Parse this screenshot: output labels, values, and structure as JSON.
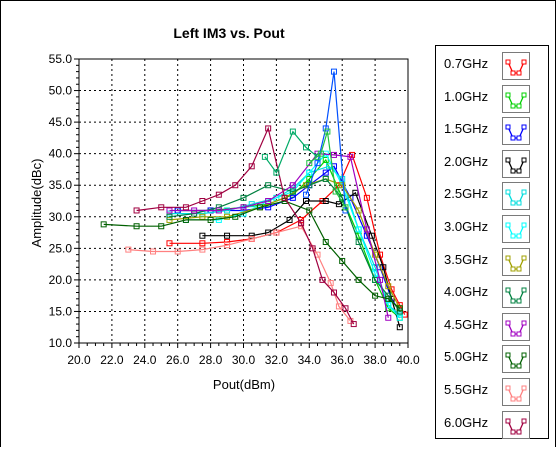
{
  "chart_data": {
    "type": "line",
    "title": "Left IM3 vs. Pout",
    "xlabel": "Pout(dBm)",
    "ylabel": "Amplitude(dBc)",
    "xlim": [
      20.0,
      40.0
    ],
    "ylim": [
      10.0,
      55.0
    ],
    "x_ticks": [
      "20.0",
      "22.0",
      "24.0",
      "26.0",
      "28.0",
      "30.0",
      "32.0",
      "34.0",
      "36.0",
      "38.0",
      "40.0"
    ],
    "y_ticks": [
      "10.0",
      "15.0",
      "20.0",
      "25.0",
      "30.0",
      "35.0",
      "40.0",
      "45.0",
      "50.0",
      "55.0"
    ],
    "grid": true,
    "legend_position": "right",
    "series": [
      {
        "name": "0.7GHz",
        "color": "#ff0000",
        "points": [
          [
            25.5,
            25.8
          ],
          [
            27.5,
            25.8
          ],
          [
            29.0,
            26.0
          ],
          [
            30.5,
            26.5
          ],
          [
            32.0,
            27.5
          ],
          [
            33.5,
            29.5
          ],
          [
            34.8,
            32.5
          ],
          [
            35.8,
            35.0
          ],
          [
            36.6,
            39.8
          ],
          [
            37.5,
            33.0
          ],
          [
            38.3,
            24.0
          ],
          [
            39.0,
            18.5
          ],
          [
            39.5,
            16.0
          ],
          [
            39.8,
            14.5
          ]
        ]
      },
      {
        "name": "1.0GHz",
        "color": "#00d000",
        "points": [
          [
            26.0,
            31.0
          ],
          [
            28.0,
            31.0
          ],
          [
            30.0,
            31.5
          ],
          [
            31.5,
            32.0
          ],
          [
            33.0,
            33.5
          ],
          [
            34.0,
            36.0
          ],
          [
            35.0,
            39.0
          ],
          [
            36.0,
            33.0
          ],
          [
            37.0,
            27.0
          ],
          [
            38.0,
            20.0
          ],
          [
            38.8,
            15.5
          ],
          [
            39.5,
            14.0
          ]
        ]
      },
      {
        "name": "1.5GHz",
        "color": "#0000ff",
        "points": [
          [
            26.0,
            31.0
          ],
          [
            28.0,
            31.0
          ],
          [
            30.0,
            31.0
          ],
          [
            31.5,
            31.5
          ],
          [
            33.0,
            33.0
          ],
          [
            34.0,
            35.0
          ],
          [
            35.0,
            37.0
          ],
          [
            35.5,
            38.0
          ],
          [
            36.5,
            33.0
          ],
          [
            37.5,
            27.0
          ],
          [
            38.3,
            22.0
          ],
          [
            39.0,
            17.0
          ],
          [
            39.5,
            15.0
          ]
        ]
      },
      {
        "name": "2.0GHz",
        "color": "#000000",
        "points": [
          [
            27.5,
            27.0
          ],
          [
            29.0,
            27.0
          ],
          [
            30.5,
            27.0
          ],
          [
            31.5,
            27.5
          ],
          [
            32.8,
            29.5
          ],
          [
            33.8,
            32.5
          ],
          [
            35.0,
            32.5
          ],
          [
            35.8,
            32.0
          ],
          [
            36.8,
            33.8
          ],
          [
            37.8,
            27.0
          ],
          [
            38.5,
            22.0
          ],
          [
            39.0,
            17.0
          ],
          [
            39.5,
            12.5
          ]
        ]
      },
      {
        "name": "2.5GHz",
        "color": "#00dddd",
        "points": [
          [
            25.5,
            30.5
          ],
          [
            27.5,
            30.5
          ],
          [
            29.0,
            31.0
          ],
          [
            30.5,
            32.0
          ],
          [
            32.0,
            33.0
          ],
          [
            33.0,
            34.5
          ],
          [
            34.0,
            37.0
          ],
          [
            35.2,
            38.0
          ],
          [
            36.0,
            36.0
          ],
          [
            37.0,
            28.0
          ],
          [
            38.0,
            22.0
          ],
          [
            38.8,
            16.0
          ],
          [
            39.5,
            14.5
          ]
        ]
      },
      {
        "name": "3.0GHz",
        "color": "#00ffff",
        "points": [
          [
            26.5,
            29.5
          ],
          [
            28.5,
            29.5
          ],
          [
            30.0,
            30.5
          ],
          [
            31.5,
            32.5
          ],
          [
            33.0,
            34.0
          ],
          [
            34.0,
            37.0
          ],
          [
            35.0,
            40.0
          ],
          [
            36.0,
            35.0
          ],
          [
            37.0,
            28.0
          ],
          [
            38.0,
            21.0
          ],
          [
            38.8,
            16.0
          ],
          [
            39.5,
            14.0
          ]
        ]
      },
      {
        "name": "3.5GHz",
        "color": "#a0a000",
        "points": [
          [
            25.5,
            29.5
          ],
          [
            27.5,
            30.0
          ],
          [
            29.0,
            30.0
          ],
          [
            31.0,
            31.5
          ],
          [
            32.5,
            33.0
          ],
          [
            33.8,
            35.0
          ],
          [
            35.0,
            36.0
          ],
          [
            36.0,
            35.0
          ],
          [
            37.0,
            31.0
          ],
          [
            38.0,
            24.0
          ],
          [
            38.8,
            19.0
          ],
          [
            39.5,
            15.5
          ]
        ]
      },
      {
        "name": "4.0GHz",
        "color": "#008040",
        "points": [
          [
            25.5,
            30.0
          ],
          [
            27.0,
            30.5
          ],
          [
            28.5,
            31.5
          ],
          [
            30.0,
            33.0
          ],
          [
            31.5,
            35.0
          ],
          [
            33.0,
            34.0
          ],
          [
            34.0,
            35.0
          ],
          [
            35.0,
            36.0
          ],
          [
            36.0,
            33.0
          ],
          [
            37.0,
            26.0
          ],
          [
            38.0,
            20.0
          ],
          [
            38.8,
            17.5
          ],
          [
            39.5,
            15.0
          ]
        ]
      },
      {
        "name": "4.5GHz",
        "color": "#a000c0",
        "points": [
          [
            25.5,
            31.0
          ],
          [
            27.0,
            31.0
          ],
          [
            28.5,
            31.0
          ],
          [
            30.0,
            31.5
          ],
          [
            31.5,
            32.5
          ],
          [
            33.0,
            35.0
          ],
          [
            34.5,
            40.0
          ],
          [
            35.5,
            39.8
          ],
          [
            36.5,
            39.5
          ],
          [
            37.5,
            28.0
          ],
          [
            38.3,
            20.0
          ],
          [
            38.8,
            14.0
          ]
        ]
      },
      {
        "name": "5.0GHz",
        "color": "#006000",
        "points": [
          [
            21.5,
            28.8
          ],
          [
            23.5,
            28.5
          ],
          [
            25.0,
            28.5
          ],
          [
            26.5,
            29.5
          ],
          [
            28.0,
            29.5
          ],
          [
            29.5,
            30.0
          ],
          [
            31.0,
            31.5
          ],
          [
            32.5,
            32.5
          ],
          [
            34.0,
            31.0
          ],
          [
            35.0,
            26.0
          ],
          [
            36.0,
            23.0
          ],
          [
            37.0,
            20.0
          ],
          [
            38.0,
            17.5
          ],
          [
            38.8,
            17.0
          ],
          [
            39.5,
            15.5
          ]
        ]
      },
      {
        "name": "5.5GHz",
        "color": "#ff8080",
        "points": [
          [
            23.0,
            24.8
          ],
          [
            24.5,
            24.5
          ],
          [
            26.0,
            24.5
          ],
          [
            27.5,
            24.8
          ],
          [
            29.0,
            25.5
          ],
          [
            30.5,
            26.5
          ],
          [
            32.0,
            27.5
          ],
          [
            33.5,
            28.5
          ],
          [
            34.5,
            24.0
          ],
          [
            35.3,
            19.5
          ],
          [
            35.8,
            15.8
          ],
          [
            36.5,
            13.5
          ]
        ]
      },
      {
        "name": "6.0GHz",
        "color": "#a00040",
        "points": [
          [
            23.5,
            31.0
          ],
          [
            25.0,
            31.5
          ],
          [
            26.5,
            31.5
          ],
          [
            27.5,
            32.5
          ],
          [
            28.5,
            33.5
          ],
          [
            29.5,
            35.0
          ],
          [
            30.5,
            38.0
          ],
          [
            31.5,
            44.0
          ],
          [
            32.5,
            33.0
          ],
          [
            33.5,
            29.0
          ],
          [
            34.2,
            25.0
          ],
          [
            34.8,
            20.0
          ],
          [
            35.5,
            18.0
          ],
          [
            36.2,
            15.5
          ],
          [
            36.7,
            13.0
          ]
        ]
      },
      {
        "name": "",
        "color": "#0050ff",
        "points": [
          [
            33.8,
            33.5
          ],
          [
            34.5,
            38.5
          ],
          [
            35.0,
            44.0
          ],
          [
            35.5,
            53.0
          ],
          [
            36.2,
            31.0
          ]
        ]
      },
      {
        "name": "",
        "color": "#00aa66",
        "points": [
          [
            31.3,
            39.5
          ],
          [
            32.0,
            37.0
          ],
          [
            33.0,
            43.5
          ],
          [
            33.8,
            41.0
          ],
          [
            34.5,
            39.5
          ]
        ]
      },
      {
        "name": "",
        "color": "#20c040",
        "points": [
          [
            34.0,
            38.5
          ],
          [
            34.7,
            40.0
          ],
          [
            35.1,
            43.5
          ],
          [
            35.6,
            34.0
          ],
          [
            36.2,
            31.5
          ]
        ]
      }
    ]
  }
}
